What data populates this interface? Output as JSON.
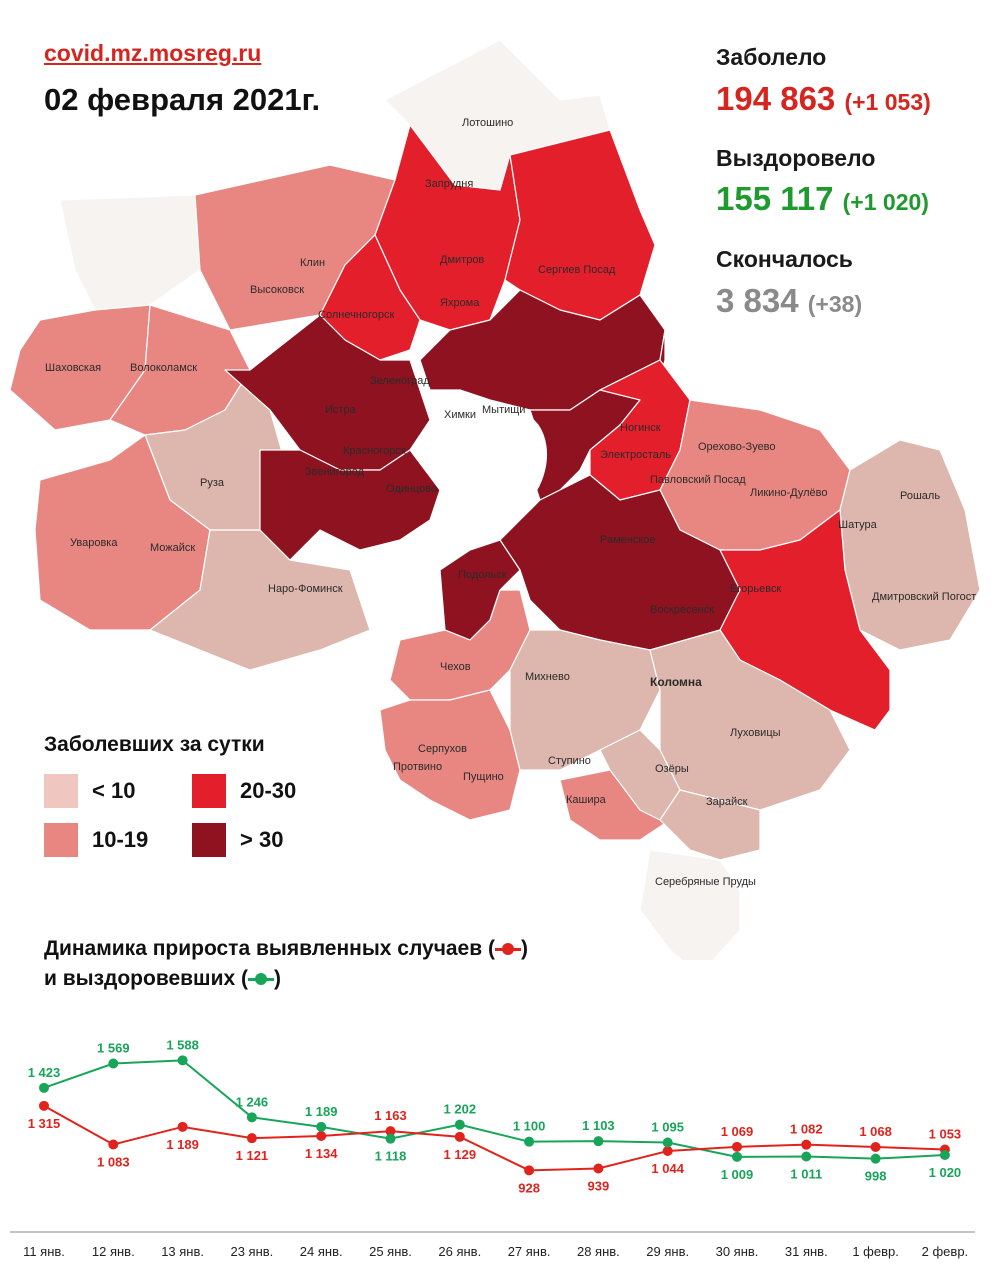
{
  "header": {
    "source": "covid.mz.mosreg.ru",
    "date": "02 февраля 2021г."
  },
  "stats": {
    "sick_label": "Заболело",
    "sick_value": "194 863",
    "sick_delta": "(+1 053)",
    "recovered_label": "Выздоровело",
    "recovered_value": "155 117",
    "recovered_delta": "(+1 020)",
    "died_label": "Скончалось",
    "died_value": "3 834",
    "died_delta": "(+38)",
    "colors": {
      "sick": "#d6241e",
      "recovered": "#1f9a2e",
      "died": "#8a8a8a"
    }
  },
  "legend": {
    "title": "Заболевших за сутки",
    "items": [
      {
        "label": "< 10",
        "color": "#efc6c0"
      },
      {
        "label": "10-19",
        "color": "#e88782"
      },
      {
        "label": "20-30",
        "color": "#e41f2c"
      },
      {
        "label": "> 30",
        "color": "#8e1220"
      }
    ]
  },
  "map": {
    "places": [
      "Лотошино",
      "Клин",
      "Высоковск",
      "Запрудня",
      "Дмитров",
      "Яхрома",
      "Сергиев Посад",
      "Солнечногорск",
      "Шаховская",
      "Волоколамск",
      "Зеленоград",
      "Истра",
      "Мытищи",
      "Химки",
      "Ногинск",
      "Красногорск",
      "Звенигород",
      "Одинцово",
      "Электросталь",
      "Орехово-Зуево",
      "Павловский Посад",
      "Руза",
      "Ликино-Дулёво",
      "Рошаль",
      "Уваровка",
      "Можайск",
      "Раменское",
      "Шатура",
      "Наро-Фоминск",
      "Подольск",
      "Егорьевск",
      "Дмитровский Погост",
      "Воскресенск",
      "Чехов",
      "Михнево",
      "Коломна",
      "Луховицы",
      "Серпухов",
      "Протвино",
      "Пущино",
      "Ступино",
      "Озёры",
      "Зарайск",
      "Кашира",
      "Серебряные Пруды"
    ]
  },
  "dynamics": {
    "title_line1": "Динамика прироста выявленных случаев (",
    "title_line1_end": ")",
    "title_line2": "и выздоровевших (",
    "title_line2_end": ")"
  },
  "chart_data": {
    "type": "line",
    "categories": [
      "11 янв.",
      "12 янв.",
      "13 янв.",
      "23 янв.",
      "24 янв.",
      "25 янв.",
      "26 янв.",
      "27 янв.",
      "28 янв.",
      "29 янв.",
      "30 янв.",
      "31 янв.",
      "1 февр.",
      "2 февр."
    ],
    "series": [
      {
        "color": "#e0241d",
        "values": [
          1315,
          1083,
          1189,
          1121,
          1134,
          1163,
          1129,
          928,
          939,
          1044,
          1069,
          1082,
          1068,
          1053
        ],
        "labels": [
          "1 315",
          "1 083",
          "1 189",
          "1 121",
          "1 134",
          "1 163",
          "1 129",
          "928",
          "939",
          "1 044",
          "1 069",
          "1 082",
          "1 068",
          "1 053"
        ]
      },
      {
        "color": "#18a55a",
        "values": [
          1423,
          1569,
          1588,
          1246,
          1189,
          1118,
          1202,
          1100,
          1103,
          1095,
          1009,
          1011,
          998,
          1020
        ],
        "labels": [
          "1 423",
          "1 569",
          "1 588",
          "1 246",
          "1 189",
          "1 118",
          "1 202",
          "1 100",
          "1 103",
          "1 095",
          "1 009",
          "1 011",
          "998",
          "1 020"
        ]
      }
    ],
    "ylim": [
      900,
      1650
    ],
    "grid": false
  }
}
